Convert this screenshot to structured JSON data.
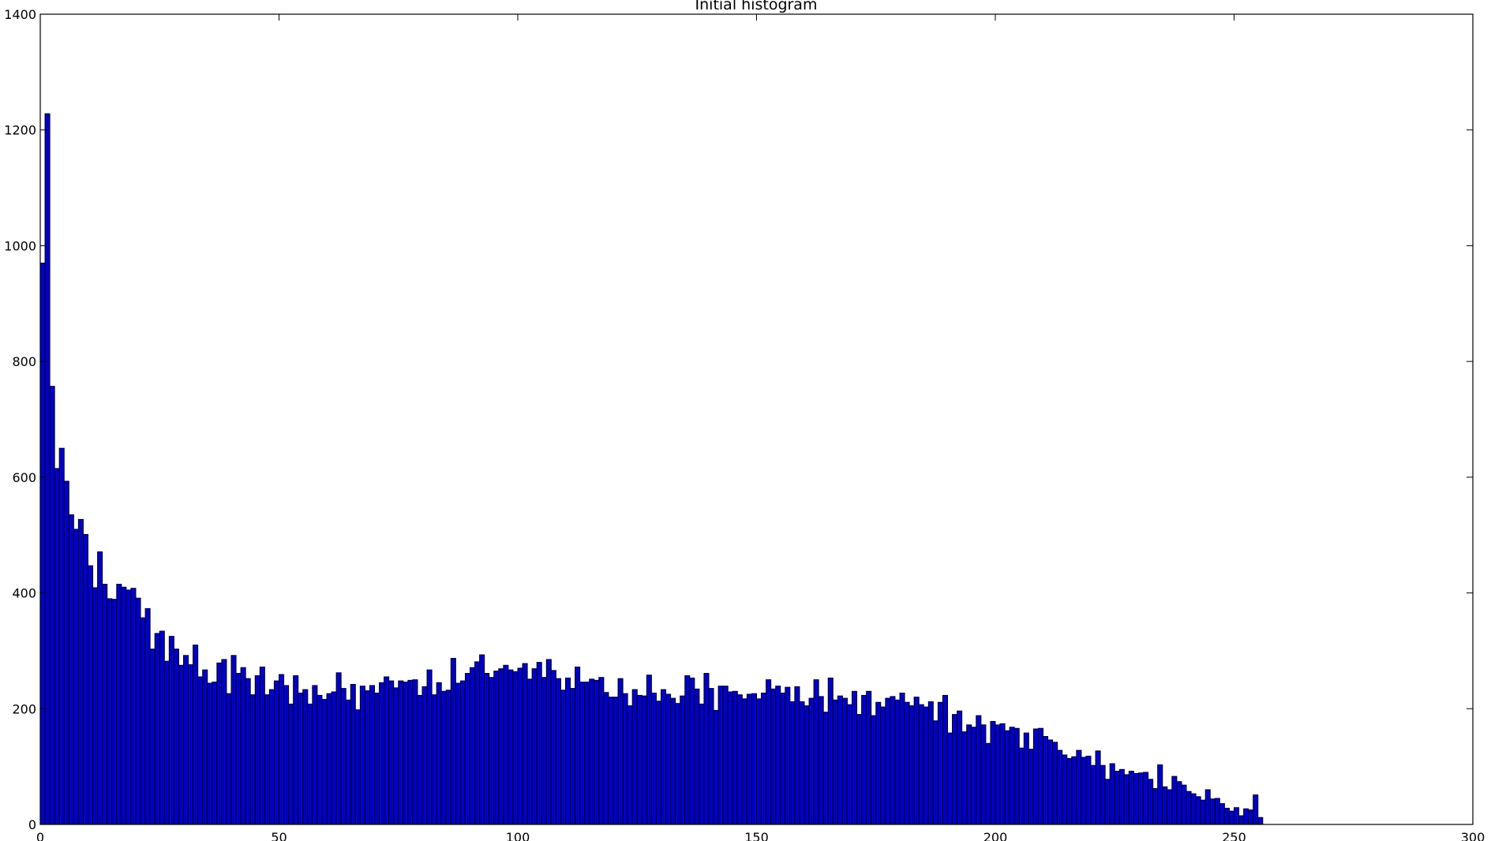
{
  "chart_data": {
    "type": "bar",
    "title": "Initial histogram",
    "xlabel": "",
    "ylabel": "",
    "xlim": [
      0,
      300
    ],
    "ylim": [
      0,
      1400
    ],
    "xticks": [
      0,
      50,
      100,
      150,
      200,
      250,
      300
    ],
    "yticks": [
      0,
      200,
      400,
      600,
      800,
      1000,
      1200,
      1400
    ],
    "bin_width": 1,
    "grid": false,
    "legend": "none",
    "bar_color": "#0000cc",
    "edge_color": "#000000",
    "x_start": 0,
    "values": [
      970,
      1228,
      757,
      615,
      650,
      593,
      535,
      510,
      527,
      501,
      447,
      409,
      471,
      415,
      390,
      389,
      415,
      410,
      405,
      408,
      391,
      357,
      373,
      303,
      330,
      334,
      282,
      325,
      303,
      275,
      292,
      276,
      310,
      255,
      267,
      244,
      246,
      279,
      285,
      226,
      292,
      261,
      271,
      252,
      224,
      257,
      272,
      224,
      233,
      248,
      259,
      240,
      208,
      257,
      227,
      233,
      208,
      240,
      223,
      216,
      226,
      229,
      262,
      235,
      215,
      242,
      198,
      239,
      231,
      240,
      227,
      245,
      255,
      248,
      236,
      248,
      246,
      249,
      250,
      223,
      238,
      267,
      224,
      245,
      230,
      232,
      287,
      244,
      248,
      261,
      271,
      281,
      293,
      261,
      254,
      265,
      269,
      275,
      267,
      264,
      270,
      278,
      251,
      269,
      280,
      254,
      285,
      266,
      252,
      232,
      253,
      235,
      272,
      246,
      246,
      251,
      249,
      254,
      228,
      220,
      220,
      252,
      226,
      205,
      233,
      223,
      222,
      258,
      227,
      213,
      233,
      225,
      218,
      209,
      222,
      257,
      253,
      234,
      208,
      261,
      235,
      197,
      239,
      239,
      229,
      230,
      224,
      217,
      225,
      226,
      217,
      227,
      250,
      234,
      239,
      227,
      237,
      212,
      238,
      212,
      205,
      218,
      250,
      221,
      194,
      253,
      215,
      222,
      218,
      207,
      230,
      190,
      223,
      230,
      188,
      211,
      203,
      218,
      221,
      215,
      227,
      211,
      205,
      220,
      207,
      203,
      212,
      179,
      211,
      223,
      158,
      190,
      196,
      160,
      172,
      168,
      188,
      172,
      140,
      178,
      172,
      174,
      162,
      168,
      166,
      132,
      158,
      130,
      165,
      166,
      152,
      146,
      142,
      128,
      120,
      114,
      117,
      128,
      116,
      118,
      102,
      127,
      102,
      78,
      105,
      92,
      95,
      86,
      92,
      88,
      89,
      90,
      78,
      62,
      103,
      65,
      60,
      83,
      74,
      68,
      57,
      53,
      48,
      42,
      60,
      44,
      45,
      36,
      28,
      23,
      29,
      15,
      27,
      25,
      51,
      12
    ]
  }
}
